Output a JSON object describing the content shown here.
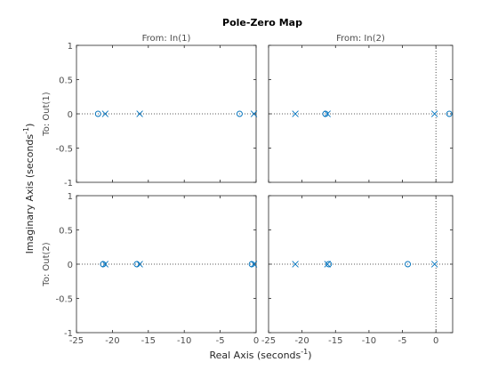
{
  "chart_data": {
    "type": "scatter",
    "title": "Pole-Zero Map",
    "xlabel_text": "Real Axis (seconds",
    "xlabel_exp": "-1",
    "xlabel_close": ")",
    "ylabel_text": "Imaginary Axis (seconds",
    "ylabel_exp": "-1",
    "ylabel_close": ")",
    "col_titles": [
      "From: In(1)",
      "From: In(2)"
    ],
    "row_titles": [
      "To: Out(1)",
      "To: Out(2)"
    ],
    "ylim": [
      -1,
      1
    ],
    "yticks": [
      "1",
      "0.5",
      "0",
      "-0.5",
      "-1"
    ],
    "xlim_col1": [
      -25,
      0
    ],
    "xlim_col2": [
      -25,
      2.5
    ],
    "xticks_col1": [
      "-25",
      "-20",
      "-15",
      "-10",
      "-5",
      "0"
    ],
    "xticks_col2": [
      "-25",
      "-20",
      "-15",
      "-10",
      "-5",
      "0"
    ],
    "grid": false,
    "marker_color": "#0072BD",
    "series": [
      {
        "name": "Pole",
        "marker": "x",
        "x": [
          -21,
          -16.2,
          -0.3
        ],
        "y": [
          0,
          0,
          0
        ]
      },
      {
        "name": "Zero",
        "marker": "o",
        "x": [
          -22,
          -2.3
        ],
        "y": [
          0,
          0
        ]
      }
    ],
    "subplots": [
      {
        "row": 0,
        "col": 0,
        "poles": [
          -21,
          -16.2,
          -0.3
        ],
        "zeros": [
          -22,
          -2.3
        ]
      },
      {
        "row": 0,
        "col": 1,
        "poles": [
          -21,
          -16.2,
          -0.2
        ],
        "zeros": [
          -16.5,
          2
        ]
      },
      {
        "row": 1,
        "col": 0,
        "poles": [
          -21,
          -16.2,
          -0.3
        ],
        "zeros": [
          -21.3,
          -16.6,
          -0.6
        ]
      },
      {
        "row": 1,
        "col": 1,
        "poles": [
          -21,
          -16.2,
          -0.2
        ],
        "zeros": [
          -16,
          -4.2
        ]
      }
    ]
  }
}
